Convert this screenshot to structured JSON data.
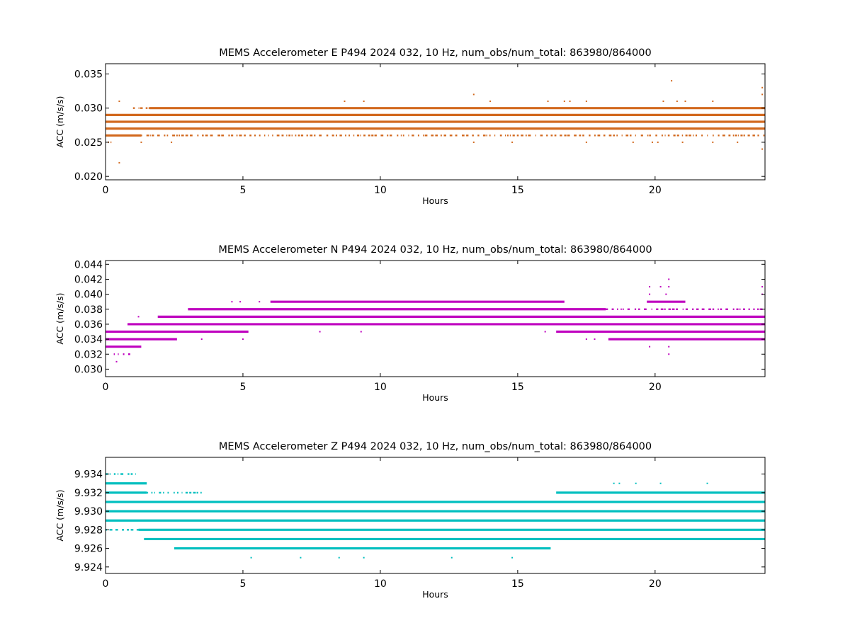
{
  "chart_data": [
    {
      "type": "scatter",
      "title": "MEMS Accelerometer E P494 2024 032, 10 Hz, num_obs/num_total: 863980/864000",
      "xlabel": "Hours",
      "ylabel": "ACC (m/s/s)",
      "xlim": [
        0,
        24
      ],
      "ylim": [
        0.0195,
        0.0365
      ],
      "xticks": [
        0,
        5,
        10,
        15,
        20
      ],
      "xtick_labels": [
        "0",
        "5",
        "10",
        "15",
        "20"
      ],
      "yticks": [
        0.02,
        0.025,
        0.03,
        0.035
      ],
      "ytick_labels": [
        "0.020",
        "0.025",
        "0.030",
        "0.035"
      ],
      "grid": false,
      "color": "#d2691e",
      "series": [
        {
          "level": 0.026,
          "x_start": 0.0,
          "x_end": 1.3,
          "density": "dense"
        },
        {
          "level": 0.026,
          "x_start": 1.3,
          "x_end": 24.0,
          "density": "sparse"
        },
        {
          "level": 0.027,
          "x_start": 0.0,
          "x_end": 24.0,
          "density": "dense"
        },
        {
          "level": 0.028,
          "x_start": 0.0,
          "x_end": 24.0,
          "density": "dense"
        },
        {
          "level": 0.029,
          "x_start": 0.0,
          "x_end": 24.0,
          "density": "dense"
        },
        {
          "level": 0.03,
          "x_start": 1.6,
          "x_end": 24.0,
          "density": "dense"
        },
        {
          "level": 0.03,
          "x_start": 1.0,
          "x_end": 1.6,
          "density": "sparse"
        },
        {
          "level": 0.025,
          "x_start": 0.1,
          "x_end": 0.3,
          "density": "sparse"
        }
      ],
      "points": [
        [
          0.5,
          0.022
        ],
        [
          0.5,
          0.031
        ],
        [
          1.3,
          0.025
        ],
        [
          2.4,
          0.025
        ],
        [
          8.7,
          0.031
        ],
        [
          9.4,
          0.031
        ],
        [
          13.4,
          0.032
        ],
        [
          13.4,
          0.025
        ],
        [
          14.0,
          0.031
        ],
        [
          14.8,
          0.025
        ],
        [
          16.1,
          0.031
        ],
        [
          16.7,
          0.031
        ],
        [
          16.9,
          0.031
        ],
        [
          17.5,
          0.031
        ],
        [
          17.5,
          0.025
        ],
        [
          19.2,
          0.025
        ],
        [
          20.6,
          0.034
        ],
        [
          20.3,
          0.031
        ],
        [
          20.8,
          0.031
        ],
        [
          21.1,
          0.031
        ],
        [
          21.0,
          0.025
        ],
        [
          22.1,
          0.031
        ],
        [
          22.1,
          0.025
        ],
        [
          23.0,
          0.025
        ],
        [
          23.9,
          0.033
        ],
        [
          23.9,
          0.032
        ],
        [
          23.9,
          0.024
        ],
        [
          19.9,
          0.025
        ],
        [
          20.1,
          0.025
        ]
      ]
    },
    {
      "type": "scatter",
      "title": "MEMS Accelerometer N P494 2024 032, 10 Hz, num_obs/num_total: 863980/864000",
      "xlabel": "Hours",
      "ylabel": "ACC (m/s/s)",
      "xlim": [
        0,
        24
      ],
      "ylim": [
        0.029,
        0.0445
      ],
      "xticks": [
        0,
        5,
        10,
        15,
        20
      ],
      "xtick_labels": [
        "0",
        "5",
        "10",
        "15",
        "20"
      ],
      "yticks": [
        0.03,
        0.032,
        0.034,
        0.036,
        0.038,
        0.04,
        0.042,
        0.044
      ],
      "ytick_labels": [
        "0.030",
        "0.032",
        "0.034",
        "0.036",
        "0.038",
        "0.040",
        "0.042",
        "0.044"
      ],
      "grid": false,
      "color": "#bf00bf",
      "series": [
        {
          "level": 0.033,
          "x_start": 0.0,
          "x_end": 1.3,
          "density": "dense"
        },
        {
          "level": 0.034,
          "x_start": 0.0,
          "x_end": 2.6,
          "density": "dense"
        },
        {
          "level": 0.034,
          "x_start": 18.3,
          "x_end": 24.0,
          "density": "dense"
        },
        {
          "level": 0.035,
          "x_start": 0.0,
          "x_end": 5.2,
          "density": "dense"
        },
        {
          "level": 0.035,
          "x_start": 16.4,
          "x_end": 24.0,
          "density": "dense"
        },
        {
          "level": 0.036,
          "x_start": 0.8,
          "x_end": 24.0,
          "density": "dense"
        },
        {
          "level": 0.037,
          "x_start": 1.9,
          "x_end": 24.0,
          "density": "dense"
        },
        {
          "level": 0.038,
          "x_start": 3.0,
          "x_end": 18.2,
          "density": "dense"
        },
        {
          "level": 0.038,
          "x_start": 18.2,
          "x_end": 24.0,
          "density": "sparse"
        },
        {
          "level": 0.039,
          "x_start": 6.0,
          "x_end": 16.7,
          "density": "dense"
        },
        {
          "level": 0.039,
          "x_start": 19.7,
          "x_end": 21.1,
          "density": "dense"
        },
        {
          "level": 0.032,
          "x_start": 0.3,
          "x_end": 0.9,
          "density": "sparse"
        }
      ],
      "points": [
        [
          0.4,
          0.031
        ],
        [
          4.6,
          0.039
        ],
        [
          4.9,
          0.039
        ],
        [
          5.6,
          0.039
        ],
        [
          20.5,
          0.042
        ],
        [
          19.8,
          0.041
        ],
        [
          20.2,
          0.041
        ],
        [
          20.5,
          0.041
        ],
        [
          20.4,
          0.04
        ],
        [
          19.8,
          0.04
        ],
        [
          23.9,
          0.041
        ],
        [
          23.9,
          0.04
        ],
        [
          20.5,
          0.032
        ],
        [
          19.8,
          0.033
        ],
        [
          20.5,
          0.033
        ],
        [
          17.5,
          0.034
        ],
        [
          17.8,
          0.034
        ],
        [
          23.9,
          0.034
        ],
        [
          5.0,
          0.034
        ],
        [
          3.5,
          0.034
        ],
        [
          7.8,
          0.035
        ],
        [
          9.3,
          0.035
        ],
        [
          16.0,
          0.035
        ],
        [
          1.2,
          0.037
        ]
      ]
    },
    {
      "type": "scatter",
      "title": "MEMS Accelerometer Z P494 2024 032, 10 Hz, num_obs/num_total: 863980/864000",
      "xlabel": "Hours",
      "ylabel": "ACC (m/s/s)",
      "xlim": [
        0,
        24
      ],
      "ylim": [
        9.9233,
        9.9358
      ],
      "xticks": [
        0,
        5,
        10,
        15,
        20
      ],
      "xtick_labels": [
        "0",
        "5",
        "10",
        "15",
        "20"
      ],
      "yticks": [
        9.924,
        9.926,
        9.928,
        9.93,
        9.932,
        9.934
      ],
      "ytick_labels": [
        "9.924",
        "9.926",
        "9.928",
        "9.930",
        "9.932",
        "9.934"
      ],
      "grid": false,
      "color": "#00bfbf",
      "series": [
        {
          "level": 9.934,
          "x_start": 0.0,
          "x_end": 1.1,
          "density": "sparse"
        },
        {
          "level": 9.933,
          "x_start": 0.0,
          "x_end": 1.5,
          "density": "dense"
        },
        {
          "level": 9.932,
          "x_start": 0.0,
          "x_end": 1.5,
          "density": "dense"
        },
        {
          "level": 9.932,
          "x_start": 1.5,
          "x_end": 3.5,
          "density": "sparse"
        },
        {
          "level": 9.932,
          "x_start": 16.4,
          "x_end": 24.0,
          "density": "dense"
        },
        {
          "level": 9.931,
          "x_start": 0.0,
          "x_end": 24.0,
          "density": "dense"
        },
        {
          "level": 9.93,
          "x_start": 0.0,
          "x_end": 24.0,
          "density": "dense"
        },
        {
          "level": 9.929,
          "x_start": 0.0,
          "x_end": 24.0,
          "density": "dense"
        },
        {
          "level": 9.928,
          "x_start": 1.2,
          "x_end": 24.0,
          "density": "dense"
        },
        {
          "level": 9.928,
          "x_start": 0.0,
          "x_end": 1.2,
          "density": "sparse"
        },
        {
          "level": 9.927,
          "x_start": 1.4,
          "x_end": 24.0,
          "density": "dense"
        },
        {
          "level": 9.926,
          "x_start": 2.5,
          "x_end": 16.2,
          "density": "dense"
        }
      ],
      "points": [
        [
          5.3,
          9.925
        ],
        [
          7.1,
          9.925
        ],
        [
          8.5,
          9.925
        ],
        [
          9.4,
          9.925
        ],
        [
          12.6,
          9.925
        ],
        [
          14.8,
          9.925
        ],
        [
          18.5,
          9.933
        ],
        [
          18.7,
          9.933
        ],
        [
          19.3,
          9.933
        ],
        [
          20.2,
          9.933
        ],
        [
          21.9,
          9.933
        ]
      ]
    }
  ]
}
